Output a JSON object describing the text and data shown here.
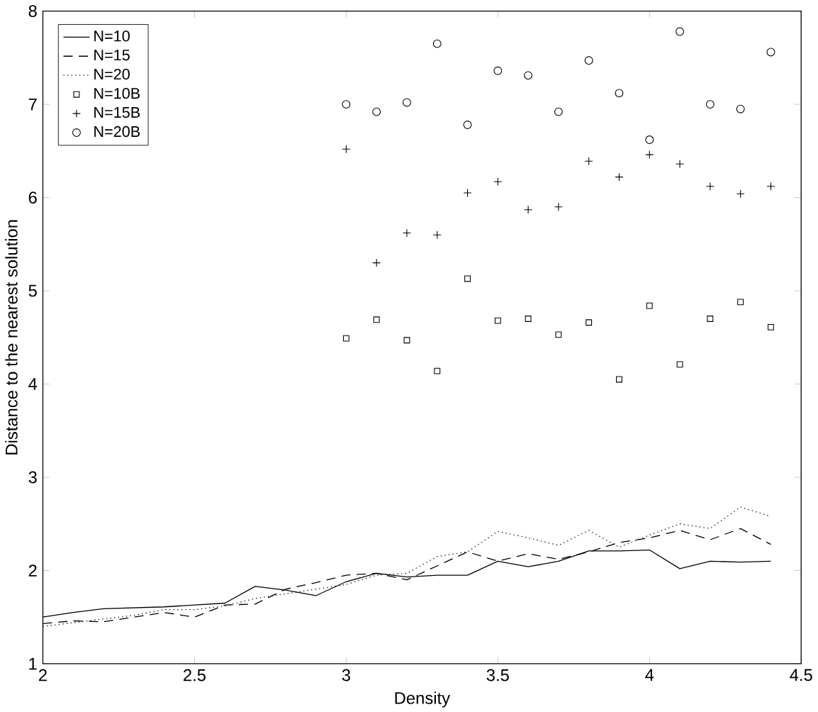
{
  "chart_data": {
    "type": "line",
    "xlabel": "Density",
    "ylabel": "Distance to the nearest solution",
    "x": [
      2.0,
      2.1,
      2.2,
      2.3,
      2.4,
      2.5,
      2.6,
      2.7,
      2.8,
      2.9,
      3.0,
      3.1,
      3.2,
      3.3,
      3.4,
      3.5,
      3.6,
      3.7,
      3.8,
      3.9,
      4.0,
      4.1,
      4.2,
      4.3,
      4.4
    ],
    "xlim": [
      2,
      4.5
    ],
    "ylim": [
      1,
      8
    ],
    "xticks": [
      2,
      2.5,
      3,
      3.5,
      4,
      4.5
    ],
    "yticks": [
      1,
      2,
      3,
      4,
      5,
      6,
      7,
      8
    ],
    "legend": "top left",
    "grid": false,
    "series": [
      {
        "name": "N=10",
        "color": "#000000",
        "line_style": "solid",
        "marker": "none",
        "values": [
          1.5,
          1.55,
          1.59,
          1.6,
          1.61,
          1.63,
          1.65,
          1.83,
          1.79,
          1.73,
          1.88,
          1.97,
          1.93,
          1.95,
          1.95,
          2.1,
          2.04,
          2.1,
          2.21,
          2.21,
          2.22,
          2.02,
          2.1,
          2.09,
          2.1
        ]
      },
      {
        "name": "N=15",
        "color": "#000000",
        "line_style": "dashed",
        "marker": "none",
        "values": [
          1.43,
          1.46,
          1.45,
          1.5,
          1.55,
          1.5,
          1.63,
          1.64,
          1.8,
          1.87,
          1.95,
          1.97,
          1.9,
          2.05,
          2.2,
          2.1,
          2.18,
          2.12,
          2.2,
          2.3,
          2.35,
          2.43,
          2.33,
          2.45,
          2.28
        ]
      },
      {
        "name": "N=20",
        "color": "#000000",
        "line_style": "dotted",
        "marker": "none",
        "values": [
          1.4,
          1.44,
          1.48,
          1.52,
          1.58,
          1.58,
          1.62,
          1.7,
          1.75,
          1.8,
          1.85,
          1.95,
          1.97,
          2.15,
          2.2,
          2.42,
          2.35,
          2.27,
          2.43,
          2.25,
          2.38,
          2.5,
          2.45,
          2.68,
          2.58
        ]
      },
      {
        "name": "N=10B",
        "color": "#000000",
        "type": "scatter",
        "marker": "square",
        "x": [
          3.0,
          3.1,
          3.2,
          3.3,
          3.4,
          3.5,
          3.6,
          3.7,
          3.8,
          3.9,
          4.0,
          4.1,
          4.2,
          4.3,
          4.4
        ],
        "values": [
          4.49,
          4.69,
          4.47,
          4.14,
          5.13,
          4.68,
          4.7,
          4.53,
          4.66,
          4.05,
          4.84,
          4.21,
          4.7,
          4.88,
          4.61
        ]
      },
      {
        "name": "N=15B",
        "color": "#000000",
        "type": "scatter",
        "marker": "cross",
        "x": [
          3.0,
          3.1,
          3.2,
          3.3,
          3.4,
          3.5,
          3.6,
          3.7,
          3.8,
          3.9,
          4.0,
          4.1,
          4.2,
          4.3,
          4.4
        ],
        "values": [
          6.52,
          5.3,
          5.62,
          5.6,
          6.05,
          6.17,
          5.87,
          5.9,
          6.39,
          6.22,
          6.46,
          6.36,
          6.12,
          6.04,
          6.12
        ]
      },
      {
        "name": "N=20B",
        "color": "#000000",
        "type": "scatter",
        "marker": "circle",
        "x": [
          3.0,
          3.1,
          3.2,
          3.3,
          3.4,
          3.5,
          3.6,
          3.7,
          3.8,
          3.9,
          4.0,
          4.1,
          4.2,
          4.3,
          4.4
        ],
        "values": [
          7.0,
          6.92,
          7.02,
          7.65,
          6.78,
          7.36,
          7.31,
          6.92,
          7.47,
          7.12,
          6.62,
          7.78,
          7.0,
          6.95,
          7.56
        ]
      }
    ]
  }
}
